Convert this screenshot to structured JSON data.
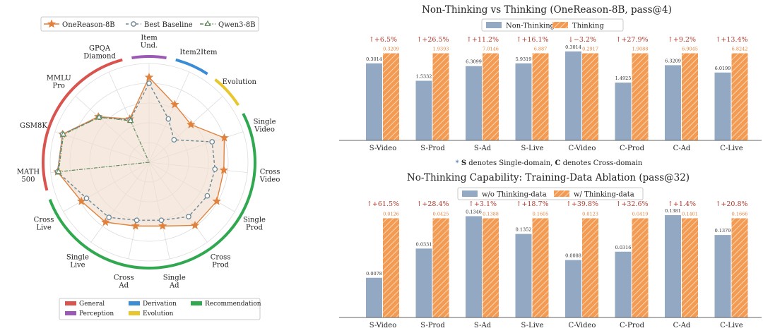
{
  "colors": {
    "onereason": "#E0823D",
    "baseline": "#6B8794",
    "qwen": "#5E8A5B",
    "fill_radar": "#F1DFCF",
    "bar_blue": "#93A9C3",
    "bar_orange": "#F39A53",
    "delta_red": "#B03A2E",
    "general": "#D9534F",
    "perception": "#9B59B6",
    "derivation": "#3A8DD4",
    "evolution": "#E7C72D",
    "recommendation": "#2FA84F",
    "grid": "#DDDDDD",
    "text": "#222222"
  },
  "chart_data": [
    {
      "type": "radar",
      "legend": [
        "OneReason-8B",
        "Best Baseline",
        "Qwen3-8B"
      ],
      "categories": [
        "Item\nUnd.",
        "Item2Item",
        "Evolution",
        "Single\nVideo",
        "Cross\nVideo",
        "Single\nProd",
        "Cross\nProd",
        "Single\nAd",
        "Cross\nAd",
        "Single\nLive",
        "Cross\nLive",
        "MATH\n500",
        "GSM8K",
        "MMLU\nPro",
        "GPQA\nDiamond"
      ],
      "series": [
        {
          "name": "OneReason-8B",
          "values": [
            0.86,
            0.64,
            0.57,
            0.8,
            0.76,
            0.79,
            0.79,
            0.66,
            0.66,
            0.75,
            0.79,
            0.93,
            0.92,
            0.69,
            0.48
          ]
        },
        {
          "name": "Best Baseline",
          "values": [
            0.8,
            0.48,
            0.34,
            0.67,
            0.67,
            0.68,
            0.68,
            0.6,
            0.6,
            0.69,
            0.73,
            0.93,
            0.92,
            0.68,
            0.47
          ]
        },
        {
          "name": "Qwen3-8B",
          "values": [
            0,
            0,
            0,
            0,
            0,
            0,
            0,
            0,
            0,
            0,
            0,
            0.92,
            0.91,
            0.68,
            0.46
          ]
        }
      ],
      "category_groups": [
        {
          "name": "General",
          "color_key": "general",
          "start": 11,
          "end": 14
        },
        {
          "name": "Perception",
          "color_key": "perception",
          "start": 0,
          "end": 0
        },
        {
          "name": "Derivation",
          "color_key": "derivation",
          "start": 1,
          "end": 1
        },
        {
          "name": "Evolution",
          "color_key": "evolution",
          "start": 2,
          "end": 2
        },
        {
          "name": "Recommendation",
          "color_key": "recommendation",
          "start": 3,
          "end": 10
        }
      ],
      "group_legend": [
        "General",
        "Derivation",
        "Recommendation",
        "Perception",
        "Evolution"
      ],
      "grid": true
    },
    {
      "type": "bar",
      "title": "Non-Thinking vs Thinking (OneReason-8B, pass@4)",
      "categories": [
        "S-Video",
        "S-Prod",
        "S-Ad",
        "S-Live",
        "C-Video",
        "C-Prod",
        "C-Ad",
        "C-Live"
      ],
      "series": [
        {
          "name": "Non-Thinking",
          "values": [
            0.3014,
            1.5332,
            6.3099,
            5.9319,
            0.3014,
            1.4925,
            6.3209,
            6.0199
          ],
          "labels": [
            "0.3014",
            "1.5332",
            "6.3099",
            "5.9319",
            "0.3014",
            "1.4925",
            "6.3209",
            "6.0199"
          ],
          "heights": [
            0.84,
            0.65,
            0.81,
            0.84,
            0.97,
            0.63,
            0.82,
            0.74
          ]
        },
        {
          "name": "Thinking",
          "values": [
            0.3209,
            1.9393,
            7.0146,
            6.887,
            0.2917,
            1.9088,
            6.9045,
            6.8242
          ],
          "labels": [
            "0.3209",
            "1.9393",
            "7.0146",
            "6.887",
            "0.2917",
            "1.9088",
            "6.9045",
            "6.8242"
          ],
          "heights": [
            0.95,
            0.95,
            0.95,
            0.95,
            0.95,
            0.95,
            0.95,
            0.95
          ]
        }
      ],
      "deltas": [
        "↑+6.5%",
        "↑+26.5%",
        "↑+11.2%",
        "↑+16.1%",
        "↓−3.2%",
        "↑+27.9%",
        "↑+9.2%",
        "↑+13.4%"
      ]
    },
    {
      "type": "bar",
      "title": "No-Thinking Capability: Training-Data Ablation (pass@32)",
      "categories": [
        "S-Video",
        "S-Prod",
        "S-Ad",
        "S-Live",
        "C-Video",
        "C-Prod",
        "C-Ad",
        "C-Live"
      ],
      "series": [
        {
          "name": "w/o Thinking-data",
          "values": [
            0.0078,
            0.0331,
            0.1346,
            0.1352,
            0.0088,
            0.0316,
            0.1381,
            0.1379
          ],
          "labels": [
            "0.0078",
            "0.0331",
            "0.1346",
            "0.1352",
            "0.0088",
            "0.0316",
            "0.1381",
            "0.1379"
          ],
          "heights": [
            0.38,
            0.66,
            0.97,
            0.8,
            0.55,
            0.63,
            0.98,
            0.79
          ]
        },
        {
          "name": "w/  Thinking-data",
          "values": [
            0.0126,
            0.0425,
            0.1388,
            0.1605,
            0.0123,
            0.0419,
            0.1401,
            0.1666
          ],
          "labels": [
            "0.0126",
            "0.0425",
            "0.1388",
            "0.1605",
            "0.0123",
            "0.0419",
            "0.1401",
            "0.1666"
          ],
          "heights": [
            0.95,
            0.95,
            0.95,
            0.95,
            0.95,
            0.95,
            0.95,
            0.95
          ]
        }
      ],
      "deltas": [
        "↑+61.5%",
        "↑+28.4%",
        "↑+3.1%",
        "↑+18.7%",
        "↑+39.8%",
        "↑+32.6%",
        "↑+1.4%",
        "↑+20.8%"
      ]
    }
  ],
  "note": {
    "star": "*",
    "s": "S",
    "s_text": "denotes Single-domain,",
    "c": "C",
    "c_text": "denotes Cross-domain"
  }
}
